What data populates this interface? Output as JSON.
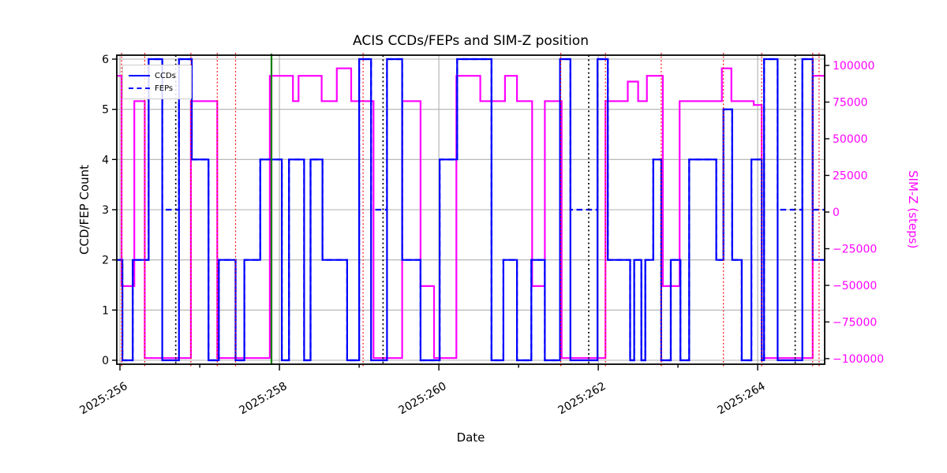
{
  "title": "ACIS CCDs/FEPs and SIM-Z position",
  "axes": {
    "x_label": "Date",
    "y_left_label": "CCD/FEP Count",
    "y_right_label": "SIM-Z (steps)"
  },
  "legend": {
    "items": [
      {
        "label": "CCDs",
        "style": "solid"
      },
      {
        "label": "FEPs",
        "style": "dashed"
      }
    ]
  },
  "colors": {
    "ccd": "#0000ff",
    "fep": "#0000ff",
    "simz": "#ff00ff",
    "grid": "#b0b0b0",
    "spine": "#000000",
    "hrc_vline": "#000000",
    "event_vline": "#008000",
    "sim_move_vline": "#ff0000",
    "right_tick_label": "#ff00ff"
  },
  "chart_data": {
    "type": "line",
    "title": "ACIS CCDs/FEPs and SIM-Z position",
    "xlabel": "Date",
    "ylabel_left": "CCD/FEP Count",
    "ylabel_right": "SIM-Z (steps)",
    "xlim": [
      255.96,
      264.84
    ],
    "ylim_left": [
      -0.079,
      6.079
    ],
    "ylim_right": [
      -103800,
      107000
    ],
    "x_major_ticks": [
      {
        "t": 256,
        "label": "2025:256"
      },
      {
        "t": 258,
        "label": "2025:258"
      },
      {
        "t": 260,
        "label": "2025:260"
      },
      {
        "t": 262,
        "label": "2025:262"
      },
      {
        "t": 264,
        "label": "2025:264"
      }
    ],
    "x_minor_ticks": [
      257,
      259,
      261,
      263
    ],
    "y_left_ticks": [
      {
        "v": 0,
        "label": "0"
      },
      {
        "v": 1,
        "label": "1"
      },
      {
        "v": 2,
        "label": "2"
      },
      {
        "v": 3,
        "label": "3"
      },
      {
        "v": 4,
        "label": "4"
      },
      {
        "v": 5,
        "label": "5"
      },
      {
        "v": 6,
        "label": "6"
      }
    ],
    "y_right_ticks": [
      {
        "v": -100000,
        "label": "−100000"
      },
      {
        "v": -75000,
        "label": "−75000"
      },
      {
        "v": -50000,
        "label": "−50000"
      },
      {
        "v": -25000,
        "label": "−25000"
      },
      {
        "v": 0,
        "label": "0"
      },
      {
        "v": 25000,
        "label": "25000"
      },
      {
        "v": 50000,
        "label": "50000"
      },
      {
        "v": 75000,
        "label": "75000"
      },
      {
        "v": 100000,
        "label": "100000"
      }
    ],
    "series": [
      {
        "name": "CCDs",
        "axis": "left",
        "line": "solid",
        "color": "#0000ff",
        "steps": [
          [
            255.96,
            2
          ],
          [
            256.03,
            0
          ],
          [
            256.16,
            2
          ],
          [
            256.36,
            6
          ],
          [
            256.53,
            0
          ],
          [
            256.74,
            6
          ],
          [
            256.9,
            4
          ],
          [
            257.11,
            0
          ],
          [
            257.24,
            2
          ],
          [
            257.45,
            0
          ],
          [
            257.56,
            2
          ],
          [
            257.76,
            4
          ],
          [
            258.03,
            0
          ],
          [
            258.12,
            4
          ],
          [
            258.31,
            0
          ],
          [
            258.39,
            4
          ],
          [
            258.54,
            2
          ],
          [
            258.85,
            0
          ],
          [
            259.0,
            6
          ],
          [
            259.15,
            0
          ],
          [
            259.35,
            6
          ],
          [
            259.54,
            2
          ],
          [
            259.77,
            0
          ],
          [
            260.01,
            4
          ],
          [
            260.23,
            6
          ],
          [
            260.66,
            0
          ],
          [
            260.81,
            2
          ],
          [
            260.98,
            0
          ],
          [
            261.16,
            2
          ],
          [
            261.33,
            0
          ],
          [
            261.52,
            6
          ],
          [
            261.65,
            0
          ],
          [
            261.99,
            6
          ],
          [
            262.12,
            2
          ],
          [
            262.4,
            0
          ],
          [
            262.45,
            2
          ],
          [
            262.54,
            0
          ],
          [
            262.59,
            2
          ],
          [
            262.69,
            4
          ],
          [
            262.79,
            0
          ],
          [
            262.91,
            2
          ],
          [
            263.03,
            0
          ],
          [
            263.14,
            4
          ],
          [
            263.48,
            2
          ],
          [
            263.57,
            5
          ],
          [
            263.68,
            2
          ],
          [
            263.8,
            0
          ],
          [
            263.92,
            4
          ],
          [
            264.05,
            0
          ],
          [
            264.08,
            6
          ],
          [
            264.25,
            0
          ],
          [
            264.56,
            6
          ],
          [
            264.69,
            2
          ]
        ]
      },
      {
        "name": "FEPs",
        "axis": "left",
        "line": "dashed",
        "color": "#0000ff",
        "steps": [
          [
            255.96,
            2
          ],
          [
            256.03,
            0
          ],
          [
            256.16,
            2
          ],
          [
            256.36,
            6
          ],
          [
            256.53,
            3
          ],
          [
            256.74,
            6
          ],
          [
            256.9,
            4
          ],
          [
            257.11,
            0
          ],
          [
            257.24,
            2
          ],
          [
            257.45,
            0
          ],
          [
            257.56,
            2
          ],
          [
            257.76,
            4
          ],
          [
            258.03,
            0
          ],
          [
            258.12,
            4
          ],
          [
            258.31,
            0
          ],
          [
            258.39,
            4
          ],
          [
            258.54,
            2
          ],
          [
            258.85,
            0
          ],
          [
            259.0,
            6
          ],
          [
            259.15,
            3
          ],
          [
            259.35,
            6
          ],
          [
            259.54,
            2
          ],
          [
            259.77,
            0
          ],
          [
            260.01,
            4
          ],
          [
            260.23,
            6
          ],
          [
            260.66,
            0
          ],
          [
            260.81,
            2
          ],
          [
            260.98,
            0
          ],
          [
            261.16,
            2
          ],
          [
            261.33,
            0
          ],
          [
            261.52,
            6
          ],
          [
            261.65,
            3
          ],
          [
            261.99,
            6
          ],
          [
            262.12,
            2
          ],
          [
            262.4,
            0
          ],
          [
            262.45,
            2
          ],
          [
            262.54,
            0
          ],
          [
            262.59,
            2
          ],
          [
            262.69,
            4
          ],
          [
            262.79,
            0
          ],
          [
            262.91,
            2
          ],
          [
            263.03,
            0
          ],
          [
            263.14,
            4
          ],
          [
            263.48,
            2
          ],
          [
            263.57,
            5
          ],
          [
            263.68,
            2
          ],
          [
            263.8,
            0
          ],
          [
            263.92,
            4
          ],
          [
            264.05,
            0
          ],
          [
            264.08,
            6
          ],
          [
            264.25,
            3
          ],
          [
            264.56,
            6
          ],
          [
            264.69,
            3
          ]
        ]
      },
      {
        "name": "SIM-Z",
        "axis": "right",
        "line": "solid",
        "color": "#ff00ff",
        "steps": [
          [
            255.96,
            92904
          ],
          [
            256.02,
            -50505
          ],
          [
            256.18,
            75624
          ],
          [
            256.31,
            -99616
          ],
          [
            256.89,
            75624
          ],
          [
            257.22,
            -99616
          ],
          [
            257.88,
            92904
          ],
          [
            258.17,
            75624
          ],
          [
            258.24,
            92904
          ],
          [
            258.53,
            75624
          ],
          [
            258.72,
            98000
          ],
          [
            258.9,
            75624
          ],
          [
            259.18,
            -99616
          ],
          [
            259.54,
            75624
          ],
          [
            259.77,
            -50505
          ],
          [
            259.94,
            -99616
          ],
          [
            260.22,
            92904
          ],
          [
            260.52,
            75624
          ],
          [
            260.83,
            92904
          ],
          [
            260.98,
            75624
          ],
          [
            261.17,
            -50505
          ],
          [
            261.33,
            75624
          ],
          [
            261.54,
            -99616
          ],
          [
            262.09,
            75624
          ],
          [
            262.37,
            89000
          ],
          [
            262.5,
            75624
          ],
          [
            262.61,
            92904
          ],
          [
            262.81,
            -50505
          ],
          [
            263.02,
            75624
          ],
          [
            263.55,
            98000
          ],
          [
            263.67,
            75624
          ],
          [
            263.95,
            73000
          ],
          [
            264.05,
            -99616
          ],
          [
            264.69,
            92904
          ]
        ]
      }
    ],
    "vlines": {
      "hrc_obs_black_dotted": [
        256.7,
        259.3,
        261.88,
        264.47
      ],
      "event_green_solid": [
        257.9
      ],
      "sim_move_red_dotted": [
        256.02,
        256.31,
        256.89,
        257.22,
        257.45,
        259.05,
        261.53,
        262.09,
        262.79,
        263.57,
        264.05,
        264.69,
        264.77
      ]
    },
    "grid": true,
    "legend_position": "upper left"
  }
}
